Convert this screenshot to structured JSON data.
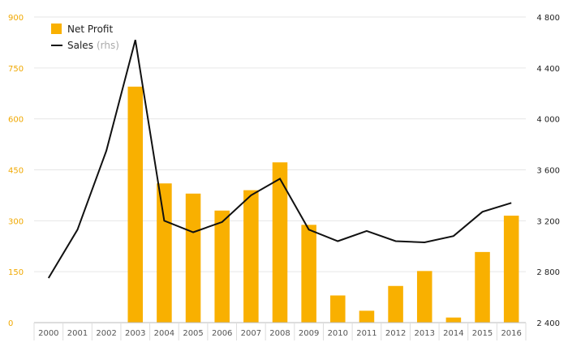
{
  "chart_data": {
    "type": "bar",
    "categories": [
      "2000",
      "2001",
      "2002",
      "2003",
      "2004",
      "2005",
      "2006",
      "2007",
      "2008",
      "2009",
      "2010",
      "2011",
      "2012",
      "2013",
      "2014",
      "2015",
      "2016"
    ],
    "series": [
      {
        "name": "Net Profit",
        "type": "bar",
        "axis": "left",
        "color": "#f9b000",
        "values": [
          0,
          0,
          0,
          695,
          410,
          380,
          330,
          390,
          472,
          288,
          80,
          35,
          108,
          152,
          15,
          208,
          315
        ]
      },
      {
        "name": "Sales",
        "axis_note": "(rhs)",
        "type": "line",
        "axis": "right",
        "color": "#111111",
        "values": [
          2750,
          3130,
          3750,
          4620,
          3200,
          3110,
          3190,
          3400,
          3530,
          3130,
          3040,
          3120,
          3040,
          3030,
          3080,
          3270,
          3340
        ]
      }
    ],
    "y_left": {
      "ylim": [
        0,
        900
      ],
      "ticks": [
        "0",
        "150",
        "300",
        "450",
        "600",
        "750",
        "900"
      ],
      "color": "#f0a800"
    },
    "y_right": {
      "ylim": [
        2400,
        4800
      ],
      "ticks": [
        "2 400",
        "2 800",
        "3 200",
        "3 600",
        "4 000",
        "4 400",
        "4 800"
      ],
      "color": "#222222"
    },
    "grid": true,
    "legend_position": "top-left"
  }
}
